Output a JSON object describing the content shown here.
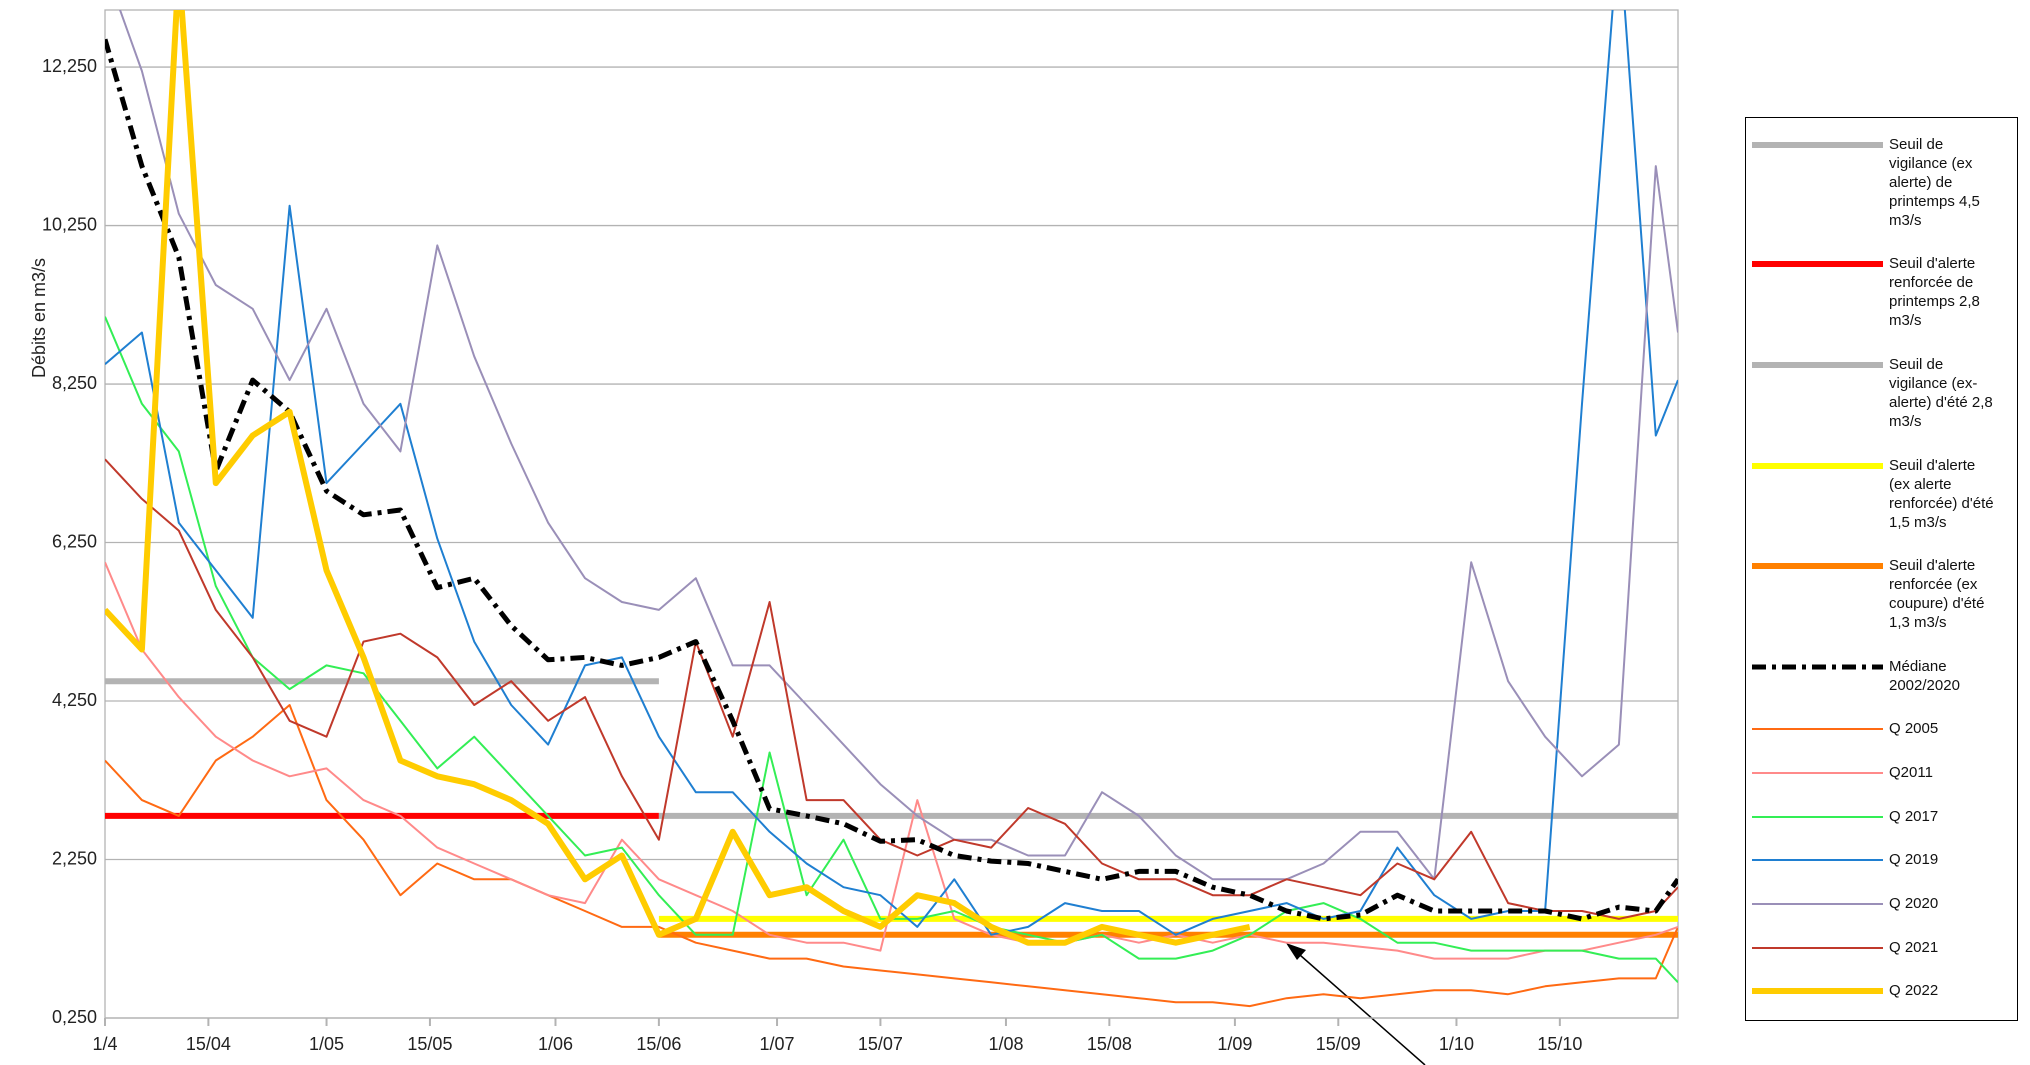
{
  "chart_data": {
    "type": "line",
    "y_label": "Débits en m3/s",
    "x": [
      0,
      5,
      10,
      15,
      20,
      25,
      30,
      35,
      40,
      45,
      50,
      55,
      60,
      65,
      70,
      75,
      80,
      85,
      90,
      95,
      100,
      105,
      110,
      115,
      120,
      125,
      130,
      135,
      140,
      145,
      150,
      155,
      160,
      165,
      170,
      175,
      180,
      185,
      190,
      195,
      200,
      205,
      210,
      213
    ],
    "xlim": [
      0,
      213
    ],
    "xticks": [
      {
        "value": 0,
        "label": "1/4"
      },
      {
        "value": 14,
        "label": "15/04"
      },
      {
        "value": 30,
        "label": "1/05"
      },
      {
        "value": 44,
        "label": "15/05"
      },
      {
        "value": 61,
        "label": "1/06"
      },
      {
        "value": 75,
        "label": "15/06"
      },
      {
        "value": 91,
        "label": "1/07"
      },
      {
        "value": 105,
        "label": "15/07"
      },
      {
        "value": 122,
        "label": "1/08"
      },
      {
        "value": 136,
        "label": "15/08"
      },
      {
        "value": 153,
        "label": "1/09"
      },
      {
        "value": 167,
        "label": "15/09"
      },
      {
        "value": 183,
        "label": "1/10"
      },
      {
        "value": 197,
        "label": "15/10"
      }
    ],
    "ylim": [
      0.25,
      12.97
    ],
    "yticks": [
      {
        "value": 0.25,
        "label": "0,250"
      },
      {
        "value": 2.25,
        "label": "2,250"
      },
      {
        "value": 4.25,
        "label": "4,250"
      },
      {
        "value": 6.25,
        "label": "6,250"
      },
      {
        "value": 8.25,
        "label": "8,250"
      },
      {
        "value": 10.25,
        "label": "10,250"
      },
      {
        "value": 12.25,
        "label": "12,250"
      }
    ],
    "grid": true,
    "legend": "right",
    "series": [
      {
        "name": "Seuil de vigilance (ex alerte) de printemps 4,5 m3/s",
        "color": "#b3b3b3",
        "style": "thick",
        "x": [
          0,
          75
        ],
        "values": [
          4.5,
          4.5
        ]
      },
      {
        "name": "Seuil d'alerte renforcée de printemps 2,8 m3/s",
        "color": "#ff0000",
        "style": "thick",
        "x": [
          0,
          75
        ],
        "values": [
          2.8,
          2.8
        ]
      },
      {
        "name": "Seuil de vigilance (ex-alerte) d'été 2,8 m3/s",
        "color": "#b3b3b3",
        "style": "thick",
        "x": [
          75,
          213
        ],
        "values": [
          2.8,
          2.8
        ]
      },
      {
        "name": "Seuil d'alerte (ex alerte renforcée) d'été 1,5 m3/s",
        "color": "#ffff00",
        "style": "thick",
        "x": [
          75,
          213
        ],
        "values": [
          1.5,
          1.5
        ]
      },
      {
        "name": "Seuil d'alerte renforcée (ex coupure) d'été 1,3 m3/s",
        "color": "#ff8000",
        "style": "thick",
        "x": [
          75,
          213
        ],
        "values": [
          1.3,
          1.3
        ]
      },
      {
        "name": "Médiane 2002/2020",
        "color": "#000000",
        "style": "dash-dot",
        "values": [
          12.6,
          11.0,
          9.85,
          7.15,
          8.3,
          7.9,
          6.9,
          6.6,
          6.66,
          5.68,
          5.8,
          5.2,
          4.77,
          4.8,
          4.7,
          4.8,
          5.0,
          4.0,
          2.89,
          2.8,
          2.7,
          2.48,
          2.5,
          2.3,
          2.23,
          2.2,
          2.1,
          2.0,
          2.1,
          2.1,
          1.9,
          1.8,
          1.6,
          1.5,
          1.55,
          1.8,
          1.6,
          1.6,
          1.6,
          1.6,
          1.5,
          1.65,
          1.6,
          2.0
        ]
      },
      {
        "name": "Q 2005",
        "color": "#ff6a13",
        "style": "thin",
        "values": [
          3.5,
          3.0,
          2.8,
          3.5,
          3.8,
          4.2,
          3.0,
          2.5,
          1.8,
          2.2,
          2.0,
          2.0,
          1.8,
          1.6,
          1.4,
          1.4,
          1.2,
          1.1,
          1.0,
          1.0,
          0.9,
          0.85,
          0.8,
          0.75,
          0.7,
          0.65,
          0.6,
          0.55,
          0.5,
          0.45,
          0.45,
          0.4,
          0.5,
          0.55,
          0.5,
          0.55,
          0.6,
          0.6,
          0.55,
          0.65,
          0.7,
          0.75,
          0.75,
          1.4
        ]
      },
      {
        "name": "Q2011",
        "color": "#ff8a8a",
        "style": "thin",
        "values": [
          6.0,
          4.9,
          4.3,
          3.8,
          3.5,
          3.3,
          3.4,
          3.0,
          2.8,
          2.4,
          2.2,
          2.0,
          1.8,
          1.7,
          2.5,
          2.0,
          1.8,
          1.6,
          1.3,
          1.2,
          1.2,
          1.1,
          3.0,
          1.5,
          1.3,
          1.2,
          1.2,
          1.3,
          1.2,
          1.3,
          1.2,
          1.3,
          1.2,
          1.2,
          1.15,
          1.1,
          1.0,
          1.0,
          1.0,
          1.1,
          1.1,
          1.2,
          1.3,
          1.4
        ]
      },
      {
        "name": "Q 2017",
        "color": "#33ee55",
        "style": "thin",
        "values": [
          9.1,
          8.0,
          7.4,
          5.7,
          4.8,
          4.4,
          4.7,
          4.6,
          4.0,
          3.4,
          3.8,
          3.3,
          2.8,
          2.3,
          2.4,
          1.8,
          1.3,
          1.3,
          3.6,
          1.8,
          2.5,
          1.5,
          1.5,
          1.6,
          1.4,
          1.3,
          1.2,
          1.3,
          1.0,
          1.0,
          1.1,
          1.3,
          1.6,
          1.7,
          1.5,
          1.2,
          1.2,
          1.1,
          1.1,
          1.1,
          1.1,
          1.0,
          1.0,
          0.7
        ]
      },
      {
        "name": "Q 2019",
        "color": "#1f7fd1",
        "style": "thin",
        "values": [
          8.5,
          8.9,
          6.5,
          5.9,
          5.3,
          10.5,
          7.0,
          7.5,
          8.0,
          6.3,
          5.0,
          4.2,
          3.7,
          4.7,
          4.8,
          3.8,
          3.1,
          3.1,
          2.6,
          2.2,
          1.9,
          1.8,
          1.4,
          2.0,
          1.3,
          1.4,
          1.7,
          1.6,
          1.6,
          1.3,
          1.5,
          1.6,
          1.7,
          1.5,
          1.6,
          2.4,
          1.8,
          1.5,
          1.6,
          1.6,
          8.0,
          14.0,
          7.6,
          8.3
        ]
      },
      {
        "name": "Q 2020",
        "color": "#9a8fb8",
        "style": "thin",
        "values": [
          13.5,
          12.2,
          10.4,
          9.5,
          9.2,
          8.3,
          9.2,
          8.0,
          7.4,
          10.0,
          8.6,
          7.5,
          6.5,
          5.8,
          5.5,
          5.4,
          5.8,
          4.7,
          4.7,
          4.2,
          3.7,
          3.2,
          2.8,
          2.5,
          2.5,
          2.3,
          2.3,
          3.1,
          2.8,
          2.3,
          2.0,
          2.0,
          2.0,
          2.2,
          2.6,
          2.6,
          2.0,
          6.0,
          4.5,
          3.8,
          3.3,
          3.7,
          11.0,
          8.9
        ]
      },
      {
        "name": "Q 2021",
        "color": "#c0392b",
        "style": "thin",
        "values": [
          7.3,
          6.8,
          6.4,
          5.4,
          4.8,
          4.0,
          3.8,
          5.0,
          5.1,
          4.8,
          4.2,
          4.5,
          4.0,
          4.3,
          3.3,
          2.5,
          5.0,
          3.8,
          5.5,
          3.0,
          3.0,
          2.5,
          2.3,
          2.5,
          2.4,
          2.9,
          2.7,
          2.2,
          2.0,
          2.0,
          1.8,
          1.8,
          2.0,
          1.9,
          1.8,
          2.2,
          2.0,
          2.6,
          1.7,
          1.6,
          1.6,
          1.5,
          1.6,
          1.9
        ]
      },
      {
        "name": "Q 2022",
        "color": "#ffcc00",
        "style": "thick",
        "values": [
          5.4,
          4.9,
          13.5,
          7.0,
          7.6,
          7.9,
          5.9,
          4.8,
          3.5,
          3.3,
          3.2,
          3.0,
          2.7,
          2.0,
          2.3,
          1.3,
          1.5,
          2.6,
          1.8,
          1.9,
          1.6,
          1.4,
          1.8,
          1.7,
          1.4,
          1.2,
          1.2,
          1.4,
          1.3,
          1.2,
          1.3,
          1.4,
          null,
          null,
          null,
          null,
          null,
          null,
          null,
          null,
          null,
          null,
          null,
          null
        ]
      }
    ]
  }
}
